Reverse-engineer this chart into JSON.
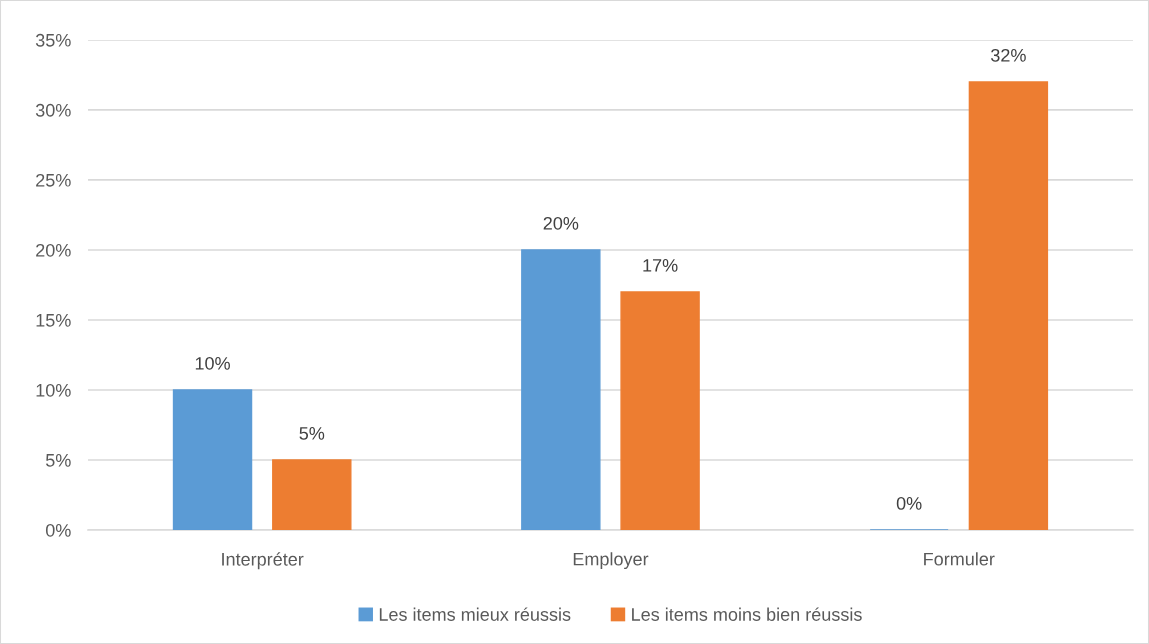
{
  "chart_data": {
    "type": "bar",
    "categories": [
      "Interpréter",
      "Employer",
      "Formuler"
    ],
    "series": [
      {
        "name": "Les items mieux réussis",
        "color": "#5b9bd5",
        "values": [
          10,
          20,
          0
        ],
        "value_labels": [
          "10%",
          "20%",
          "0%"
        ]
      },
      {
        "name": "Les items moins bien réussis",
        "color": "#ed7d31",
        "values": [
          5,
          17,
          32
        ],
        "value_labels": [
          "5%",
          "17%",
          "32%"
        ]
      }
    ],
    "ylim": [
      0,
      35
    ],
    "yticks": [
      {
        "value": 0,
        "label": "0%"
      },
      {
        "value": 5,
        "label": "5%"
      },
      {
        "value": 10,
        "label": "10%"
      },
      {
        "value": 15,
        "label": "15%"
      },
      {
        "value": 20,
        "label": "20%"
      },
      {
        "value": 25,
        "label": "25%"
      },
      {
        "value": 30,
        "label": "30%"
      },
      {
        "value": 35,
        "label": "35%"
      }
    ],
    "grid": "y",
    "legend": "bottom"
  }
}
